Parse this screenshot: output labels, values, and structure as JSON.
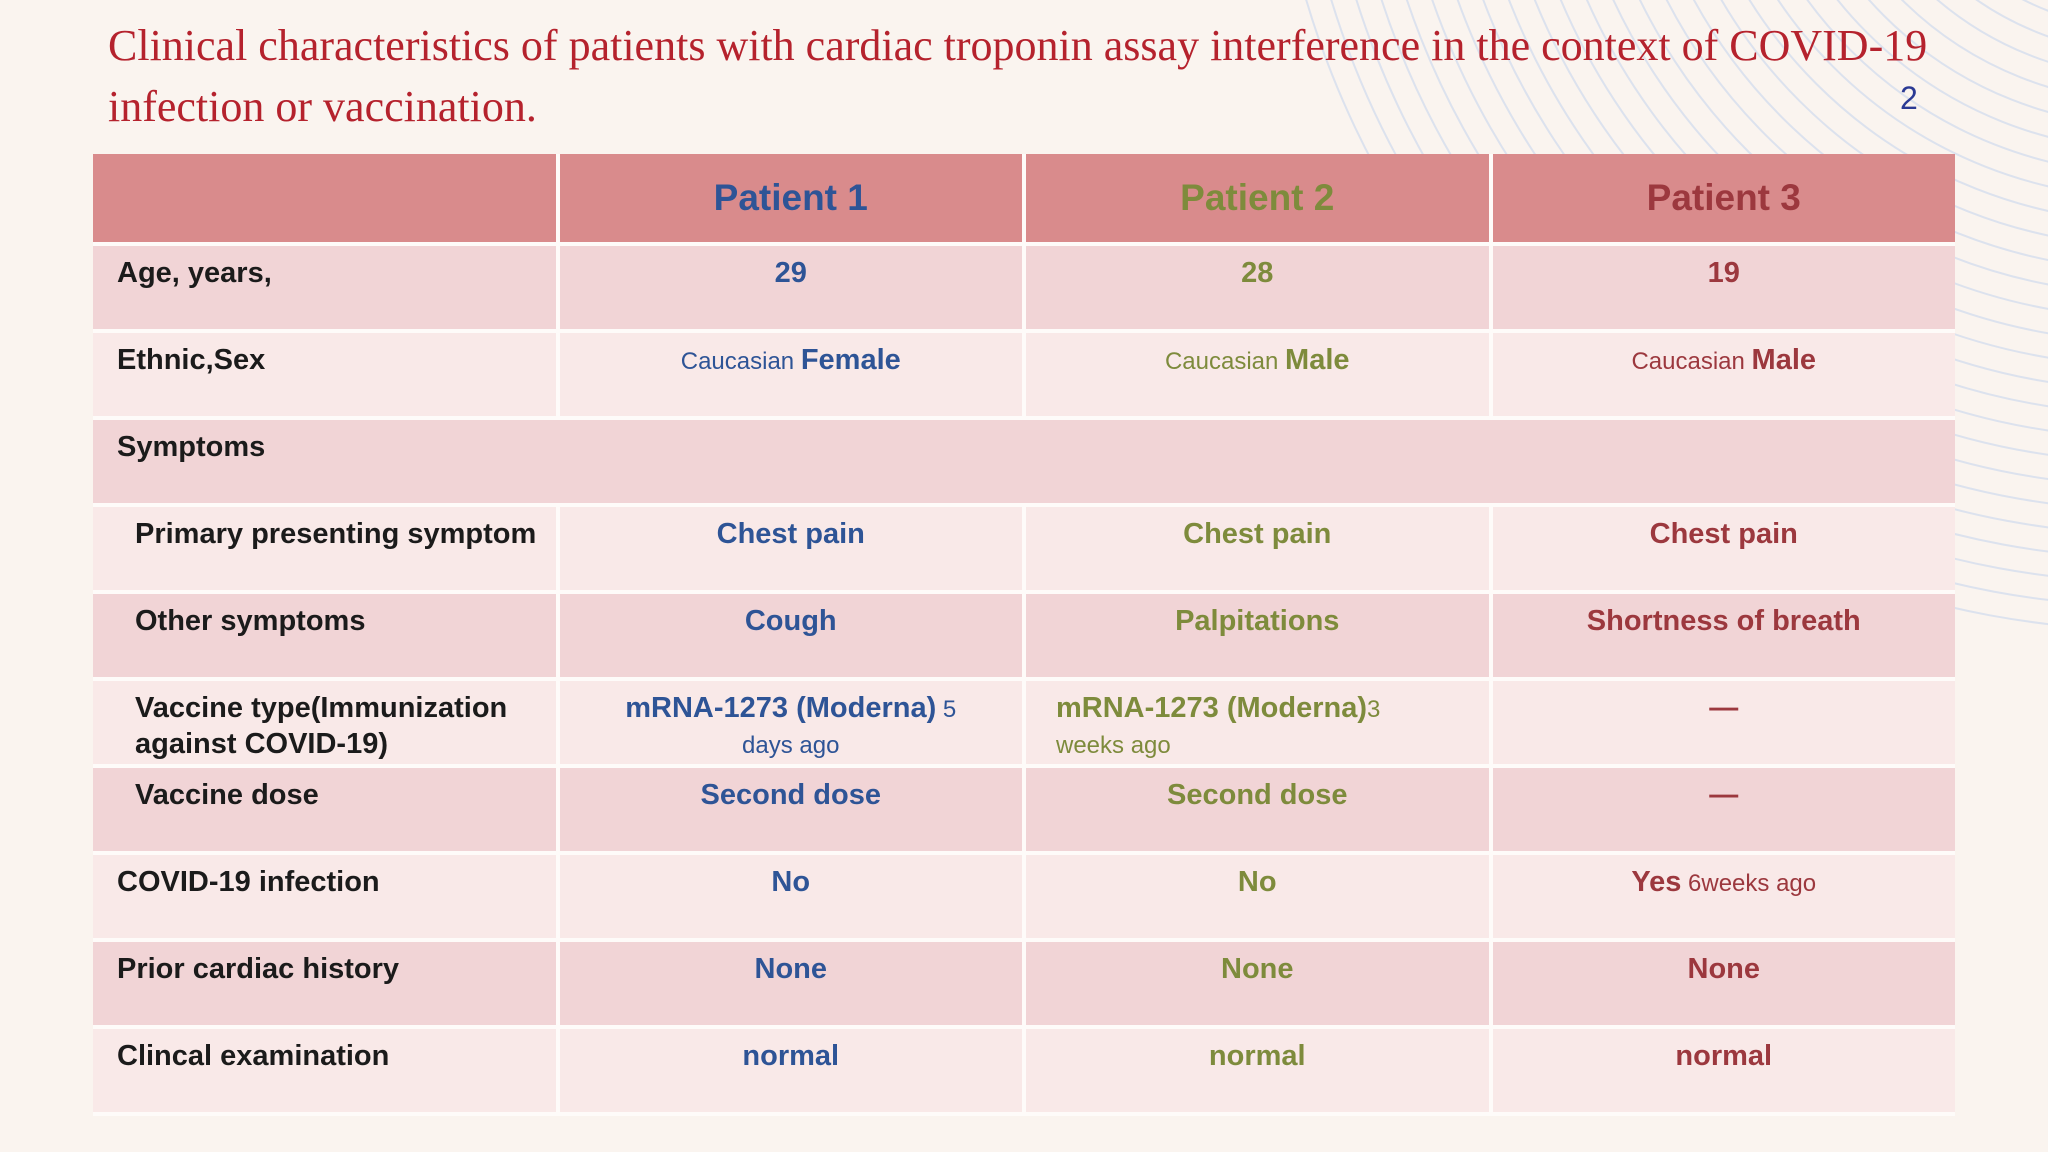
{
  "slide": {
    "title": "Clinical characteristics of patients with cardiac troponin assay interference in the context of COVID-19 infection or vaccination.",
    "page_number": "2"
  },
  "colors": {
    "slide_background": "#faf4ef",
    "decor_arc": "#c2d3ec",
    "title_red": "#b5222d",
    "page_number_blue": "#2b3a94",
    "header_bg": "#d98b8c",
    "row_dark": "#f1d4d6",
    "row_light": "#f9e9e8",
    "gap": "#fefbf9",
    "label_text": "#1b1b1b",
    "patient1": "#2e5496",
    "patient2": "#7e8b3c",
    "patient3": "#9c383e"
  },
  "table": {
    "header": {
      "row_label": "",
      "patients": [
        {
          "label": "Patient 1",
          "color": "#2e5496"
        },
        {
          "label": "Patient 2",
          "color": "#7e8b3c"
        },
        {
          "label": "Patient 3",
          "color": "#9c383e"
        }
      ]
    },
    "rows": [
      {
        "label": "Age, years,",
        "shade": "dark",
        "indent": false,
        "merged": false,
        "cells": [
          {
            "parts": [
              {
                "t": "29"
              }
            ]
          },
          {
            "parts": [
              {
                "t": "28"
              }
            ]
          },
          {
            "parts": [
              {
                "t": "19"
              }
            ]
          }
        ]
      },
      {
        "label": "Ethnic,Sex",
        "shade": "light",
        "indent": false,
        "merged": false,
        "cells": [
          {
            "parts": [
              {
                "t": "Caucasian ",
                "reg": true,
                "small": true
              },
              {
                "t": "Female"
              }
            ]
          },
          {
            "parts": [
              {
                "t": "Caucasian ",
                "reg": true,
                "small": true
              },
              {
                "t": "Male"
              }
            ]
          },
          {
            "parts": [
              {
                "t": "Caucasian ",
                "reg": true,
                "small": true
              },
              {
                "t": "Male"
              }
            ]
          }
        ]
      },
      {
        "label": "Symptoms",
        "shade": "dark",
        "indent": false,
        "merged": true,
        "cells": []
      },
      {
        "label": "Primary presenting symptom",
        "shade": "light",
        "indent": true,
        "merged": false,
        "cells": [
          {
            "parts": [
              {
                "t": "Chest pain"
              }
            ]
          },
          {
            "parts": [
              {
                "t": "Chest pain"
              }
            ]
          },
          {
            "parts": [
              {
                "t": "Chest pain"
              }
            ]
          }
        ]
      },
      {
        "label": "Other symptoms",
        "shade": "dark",
        "indent": true,
        "merged": false,
        "cells": [
          {
            "parts": [
              {
                "t": "Cough"
              }
            ]
          },
          {
            "parts": [
              {
                "t": "Palpitations"
              }
            ]
          },
          {
            "parts": [
              {
                "t": "Shortness of breath"
              }
            ]
          }
        ]
      },
      {
        "label": "Vaccine type(Immunization against COVID-19)",
        "shade": "light",
        "indent": true,
        "merged": false,
        "cells": [
          {
            "pad": true,
            "parts": [
              {
                "t": "mRNA-1273 (Moderna)"
              },
              {
                "t": " 5 days ago",
                "reg": true,
                "small": true
              }
            ]
          },
          {
            "align": "left",
            "parts": [
              {
                "t": "mRNA-1273 (Moderna)"
              },
              {
                "t": "3 weeks ago",
                "reg": true,
                "small": true
              }
            ]
          },
          {
            "parts": [
              {
                "t": "—"
              }
            ]
          }
        ]
      },
      {
        "label": "Vaccine dose",
        "shade": "dark",
        "indent": true,
        "merged": false,
        "cells": [
          {
            "parts": [
              {
                "t": "Second dose"
              }
            ]
          },
          {
            "parts": [
              {
                "t": "Second dose"
              }
            ]
          },
          {
            "parts": [
              {
                "t": "—"
              }
            ]
          }
        ]
      },
      {
        "label": "COVID-19 infection",
        "shade": "light",
        "indent": false,
        "merged": false,
        "cells": [
          {
            "parts": [
              {
                "t": "No"
              }
            ]
          },
          {
            "parts": [
              {
                "t": "No"
              }
            ]
          },
          {
            "parts": [
              {
                "t": "Yes",
                "color3": true
              },
              {
                "t": " 6weeks ago",
                "reg": true,
                "small": true
              }
            ]
          }
        ]
      },
      {
        "label": "Prior cardiac history",
        "shade": "dark",
        "indent": false,
        "merged": false,
        "cells": [
          {
            "parts": [
              {
                "t": "None"
              }
            ]
          },
          {
            "parts": [
              {
                "t": "None"
              }
            ]
          },
          {
            "parts": [
              {
                "t": "None"
              }
            ]
          }
        ]
      },
      {
        "label": "Clincal examination",
        "shade": "light",
        "indent": false,
        "merged": false,
        "cells": [
          {
            "parts": [
              {
                "t": "normal"
              }
            ]
          },
          {
            "parts": [
              {
                "t": "normal"
              }
            ]
          },
          {
            "parts": [
              {
                "t": "normal"
              }
            ]
          }
        ]
      }
    ]
  }
}
